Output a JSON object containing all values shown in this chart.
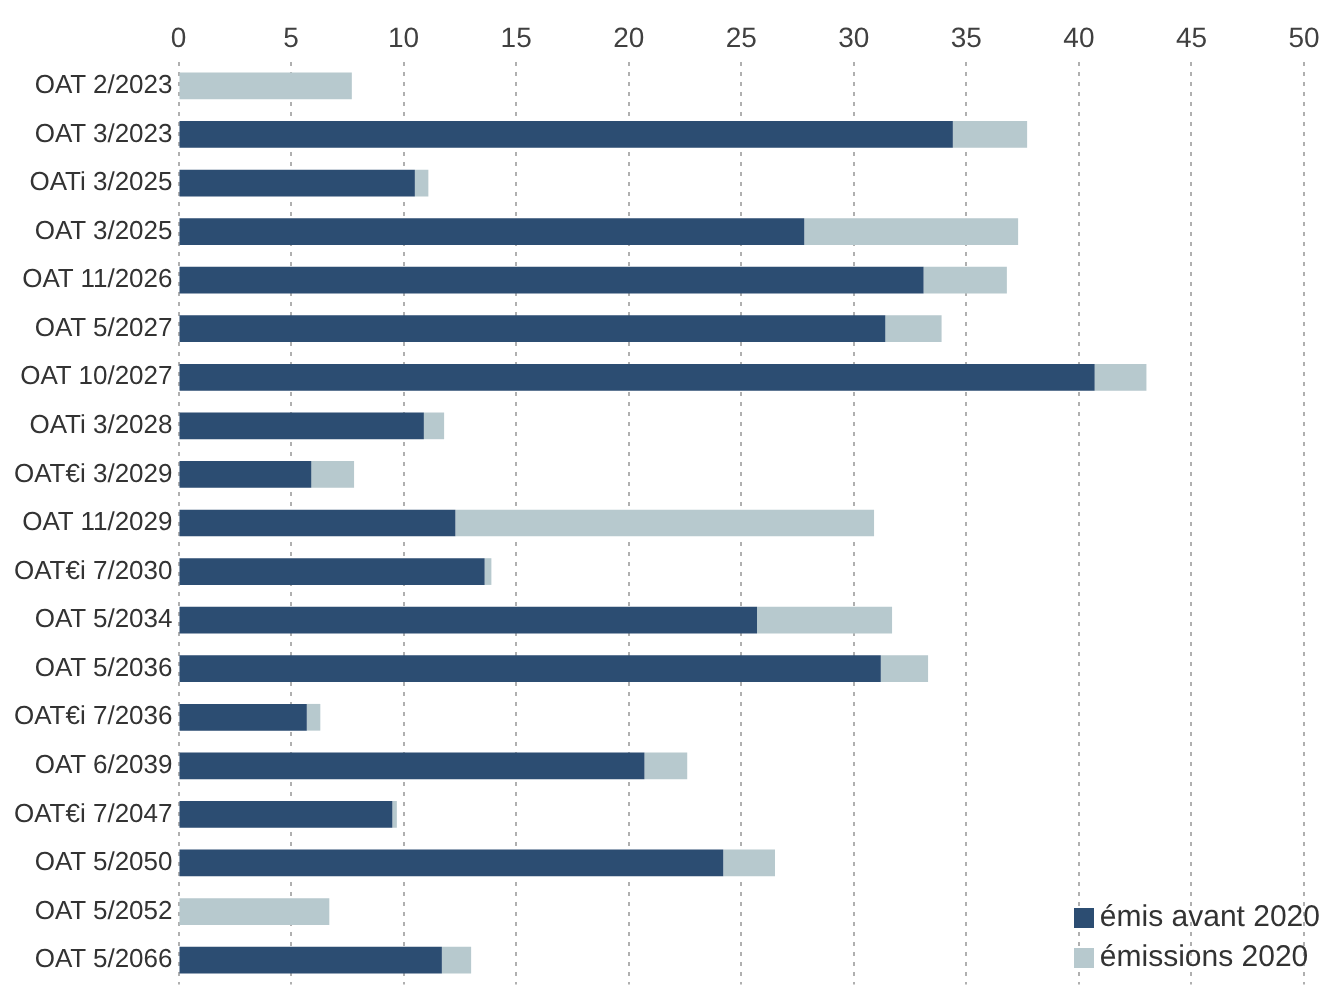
{
  "chart_data": {
    "type": "bar",
    "orientation": "horizontal",
    "stacked": true,
    "categories": [
      "OAT 2/2023",
      "OAT 3/2023",
      "OATi 3/2025",
      "OAT 3/2025",
      "OAT 11/2026",
      "OAT 5/2027",
      "OAT 10/2027",
      "OATi 3/2028",
      "OAT€i 3/2029",
      "OAT 11/2029",
      "OAT€i 7/2030",
      "OAT 5/2034",
      "OAT 5/2036",
      "OAT€i 7/2036",
      "OAT 6/2039",
      "OAT€i 7/2047",
      "OAT 5/2050",
      "OAT 5/2052",
      "OAT 5/2066"
    ],
    "series": [
      {
        "name": "émis avant 2020",
        "color": "#2c4d72",
        "values": [
          null,
          34.4,
          10.5,
          27.8,
          33.1,
          31.4,
          40.7,
          10.9,
          5.9,
          12.3,
          13.6,
          25.7,
          31.2,
          5.7,
          20.7,
          9.5,
          24.2,
          null,
          11.7
        ]
      },
      {
        "name": "émissions 2020",
        "color": "#b7c9ce",
        "values": [
          7.7,
          3.3,
          0.6,
          9.5,
          3.7,
          2.5,
          2.3,
          0.9,
          1.9,
          18.6,
          0.3,
          6.0,
          2.1,
          0.6,
          1.9,
          0.2,
          2.3,
          6.7,
          1.3
        ]
      }
    ],
    "xlim": [
      0,
      50
    ],
    "xticks": [
      0,
      5,
      10,
      15,
      20,
      25,
      30,
      35,
      40,
      45,
      50
    ],
    "grid": "x",
    "legend": "bottom right"
  }
}
